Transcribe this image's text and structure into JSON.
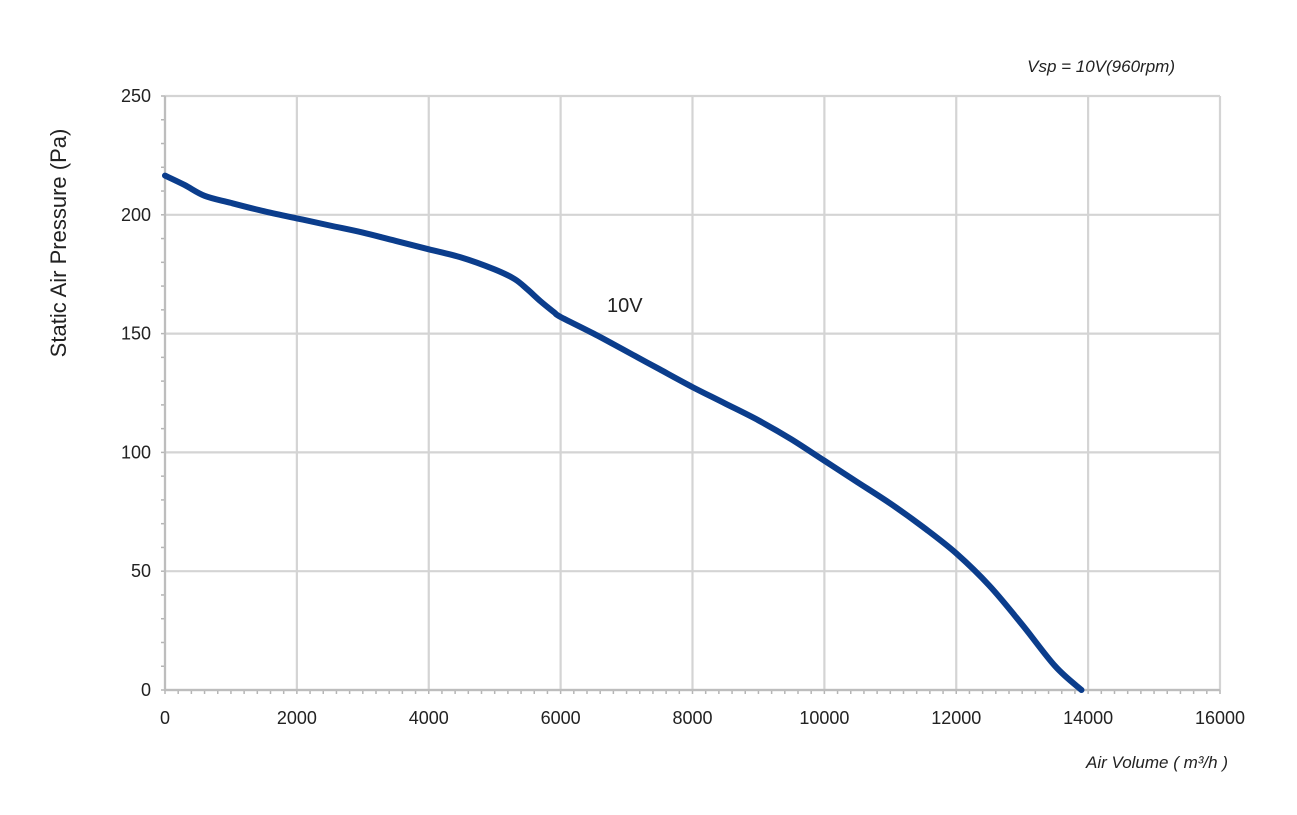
{
  "chart_data": {
    "type": "line",
    "title": "",
    "annotation_top_right": "Vsp = 10V(960rpm)",
    "xlabel": "Air Volume ( m³/h )",
    "ylabel": "Static Air Pressure  (Pa)",
    "xlim": [
      0,
      16000
    ],
    "ylim": [
      0,
      250
    ],
    "x_ticks": [
      0,
      2000,
      4000,
      6000,
      8000,
      10000,
      12000,
      14000,
      16000
    ],
    "y_ticks": [
      0,
      50,
      100,
      150,
      200,
      250
    ],
    "grid": true,
    "series": [
      {
        "name": "10V",
        "color": "#0b3d8c",
        "x": [
          0,
          300,
          600,
          1000,
          1500,
          2000,
          2500,
          3000,
          3500,
          4000,
          4500,
          5000,
          5300,
          5500,
          5700,
          5900,
          6000,
          6500,
          7000,
          7500,
          8000,
          8500,
          9000,
          9500,
          10000,
          10500,
          11000,
          11500,
          12000,
          12500,
          13000,
          13500,
          13900
        ],
        "y": [
          216.5,
          212.5,
          208,
          205,
          201.5,
          198.5,
          195.5,
          192.5,
          189,
          185.5,
          182,
          177,
          173,
          168.5,
          163.5,
          159,
          157,
          150,
          142.5,
          135,
          127.5,
          120.5,
          113.5,
          105.5,
          96.5,
          87.5,
          78.5,
          68.5,
          57.5,
          44,
          27.5,
          10,
          0
        ]
      }
    ],
    "series_label_position": "near-6000"
  }
}
